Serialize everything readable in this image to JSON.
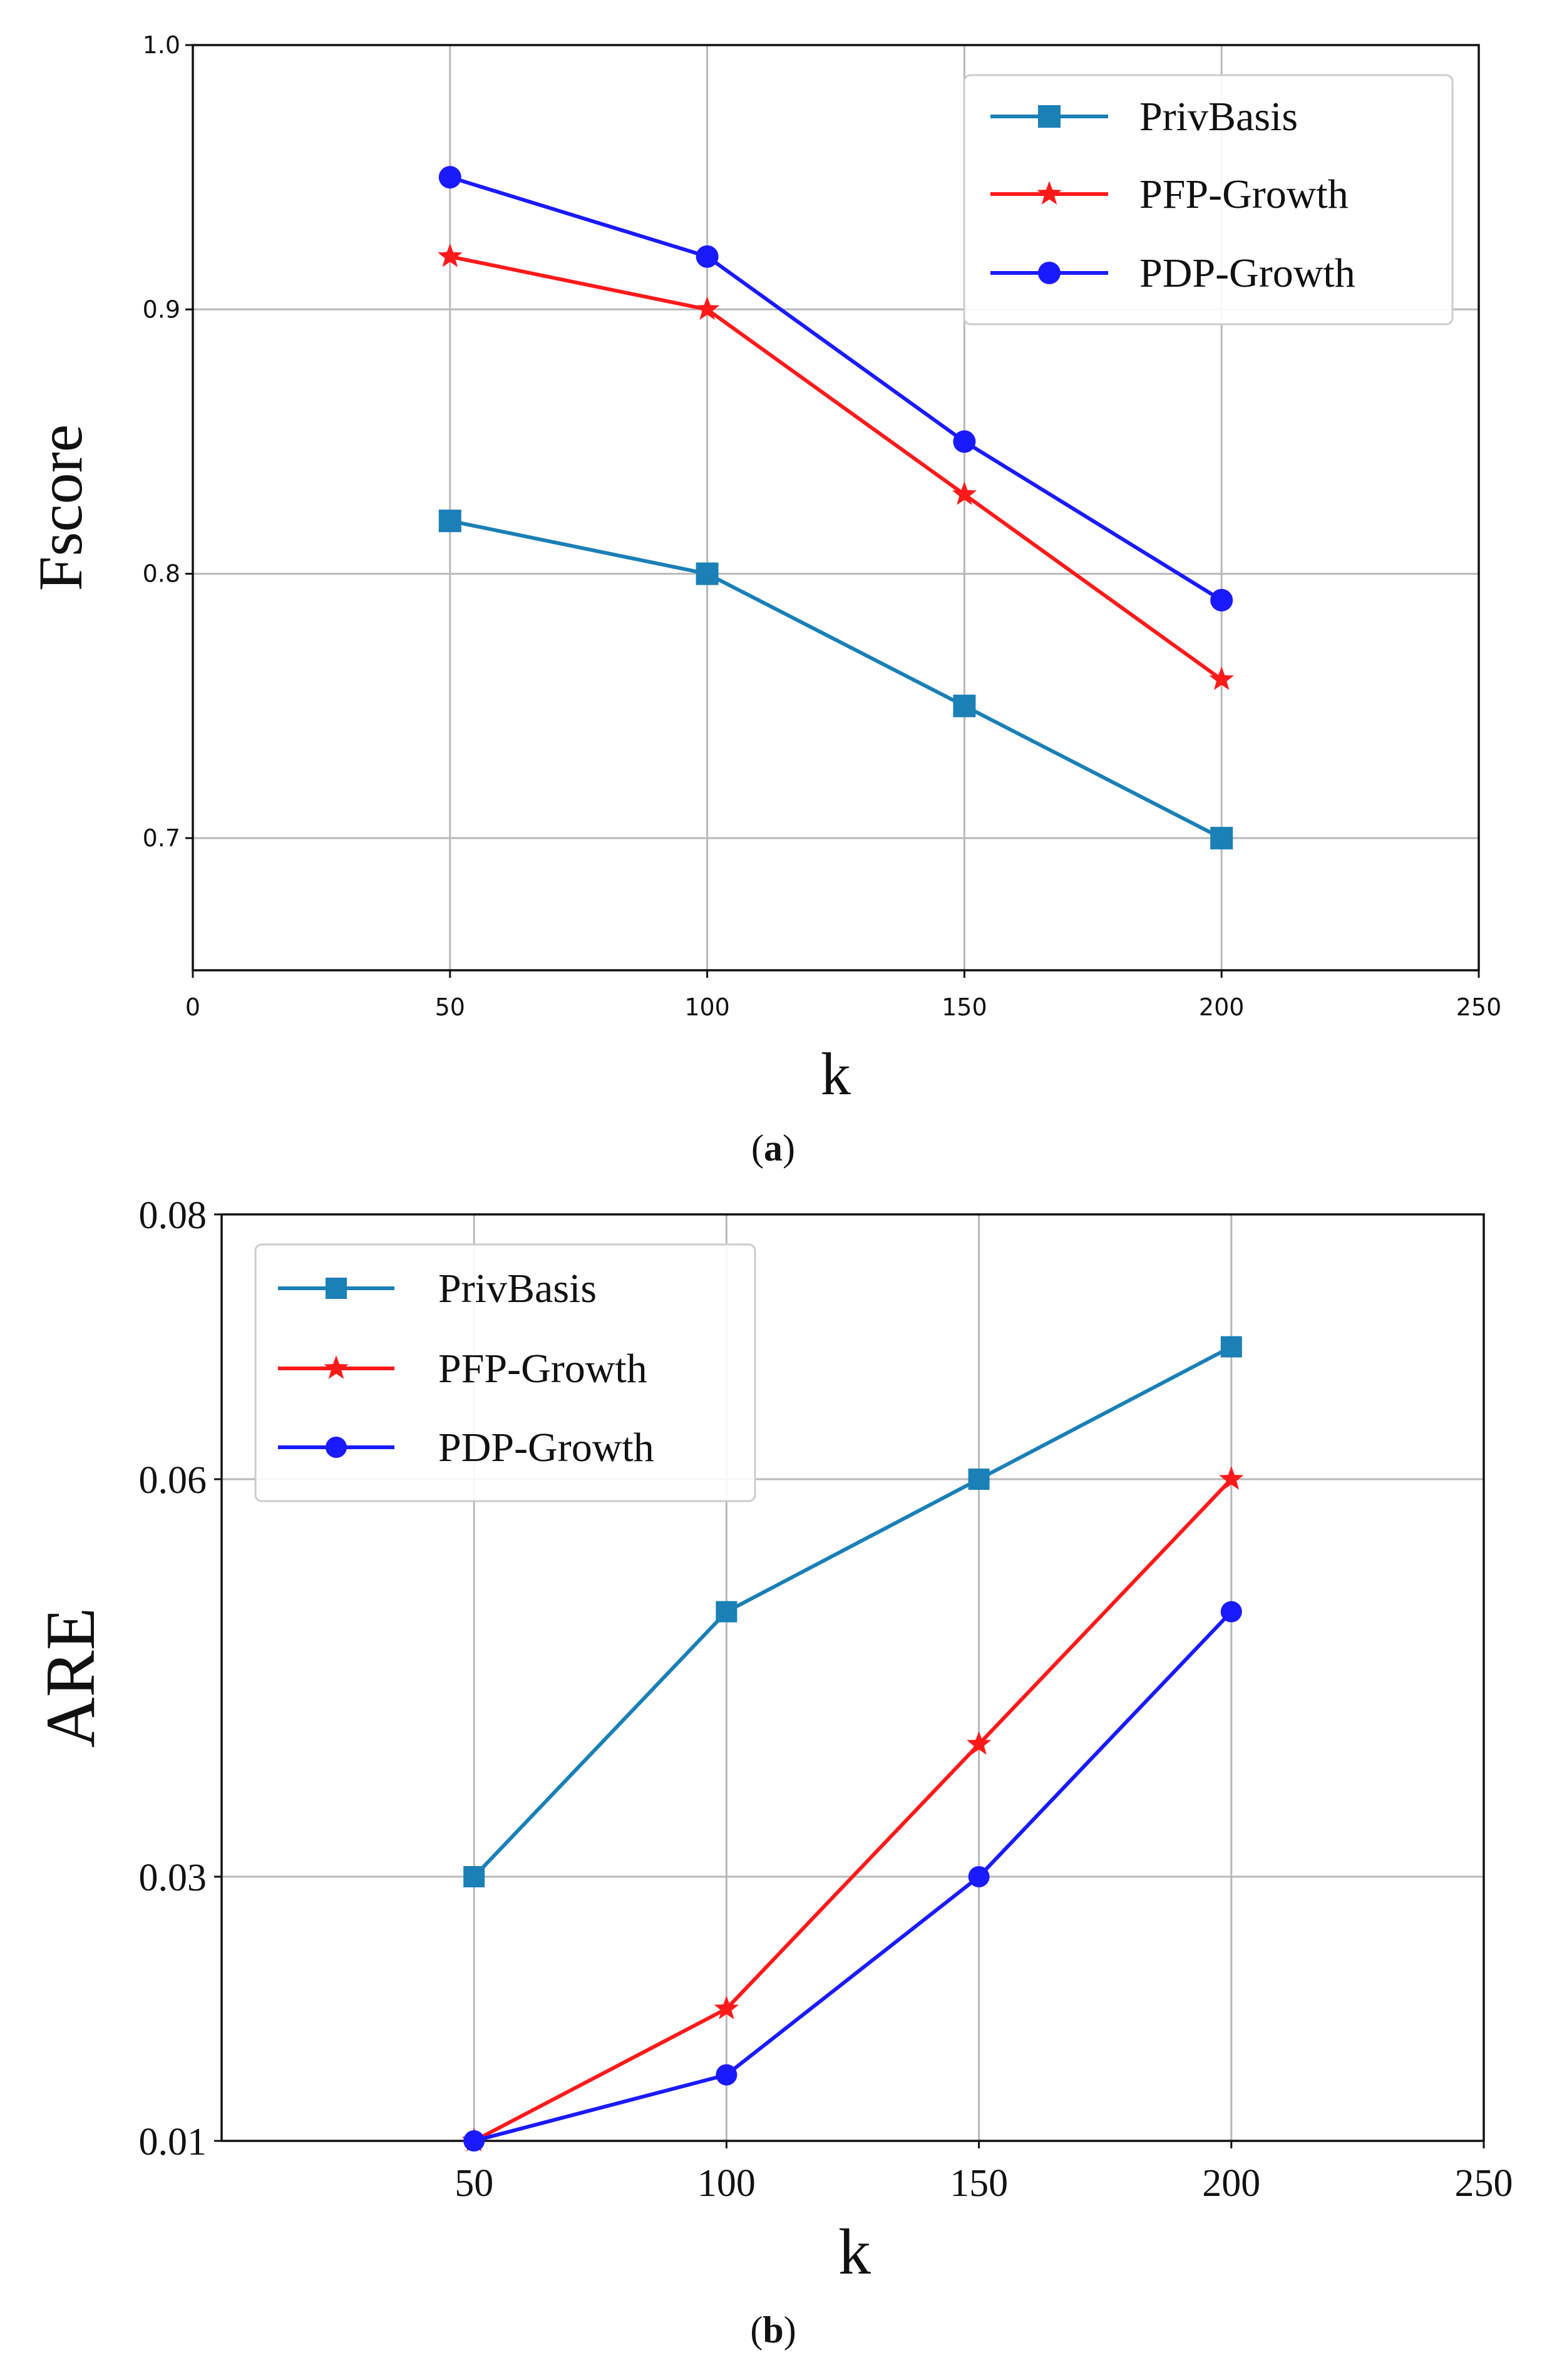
{
  "colors": {
    "privbasis": "#1a80b6",
    "pfp": "#ff1a1a",
    "pdp": "#1a1aff",
    "grid": "#b8b8b8",
    "legend_border": "#cccccc"
  },
  "chart_data": [
    {
      "type": "line",
      "panel_caption_label": "a",
      "xlabel": "k",
      "ylabel": "Fscore",
      "xlim": [
        0,
        250
      ],
      "ylim": [
        0.65,
        1.0
      ],
      "xticks": [
        0,
        50,
        100,
        150,
        200,
        250
      ],
      "xtick_labels": [
        "0",
        "50",
        "100",
        "150",
        "200",
        "250"
      ],
      "yticks": [
        0.7,
        0.8,
        0.9,
        1.0
      ],
      "ytick_labels": [
        "0.7",
        "0.8",
        "0.9",
        "1.0"
      ],
      "grid": true,
      "legend_position": "top-right",
      "series": [
        {
          "name": "PrivBasis",
          "marker": "square",
          "color_key": "privbasis",
          "x": [
            50,
            100,
            150,
            200
          ],
          "values": [
            0.82,
            0.8,
            0.75,
            0.7
          ]
        },
        {
          "name": "PFP-Growth",
          "marker": "star",
          "color_key": "pfp",
          "x": [
            50,
            100,
            150,
            200
          ],
          "values": [
            0.92,
            0.9,
            0.83,
            0.76
          ]
        },
        {
          "name": "PDP-Growth",
          "marker": "circle",
          "color_key": "pdp",
          "x": [
            50,
            100,
            150,
            200
          ],
          "values": [
            0.95,
            0.92,
            0.85,
            0.79
          ]
        }
      ]
    },
    {
      "type": "line",
      "panel_caption_label": "b",
      "xlabel": "k",
      "ylabel": "ARE",
      "xlim": [
        0,
        250
      ],
      "ylim": [
        0.01,
        0.08
      ],
      "xticks": [
        50,
        100,
        150,
        200,
        250
      ],
      "xtick_labels": [
        "50",
        "100",
        "150",
        "200",
        "250"
      ],
      "yticks": [
        0.01,
        0.03,
        0.06,
        0.08
      ],
      "ytick_labels": [
        "0.01",
        "0.03",
        "0.06",
        "0.08"
      ],
      "grid": true,
      "legend_position": "top-left",
      "series": [
        {
          "name": "PrivBasis",
          "marker": "square",
          "color_key": "privbasis",
          "x": [
            50,
            100,
            150,
            200
          ],
          "values": [
            0.03,
            0.05,
            0.06,
            0.07
          ]
        },
        {
          "name": "PFP-Growth",
          "marker": "star",
          "color_key": "pfp",
          "x": [
            50,
            100,
            150,
            200
          ],
          "values": [
            0.01,
            0.02,
            0.04,
            0.06
          ]
        },
        {
          "name": "PDP-Growth",
          "marker": "circle",
          "color_key": "pdp",
          "x": [
            50,
            100,
            150,
            200
          ],
          "values": [
            0.01,
            0.015,
            0.03,
            0.05
          ]
        }
      ]
    }
  ]
}
